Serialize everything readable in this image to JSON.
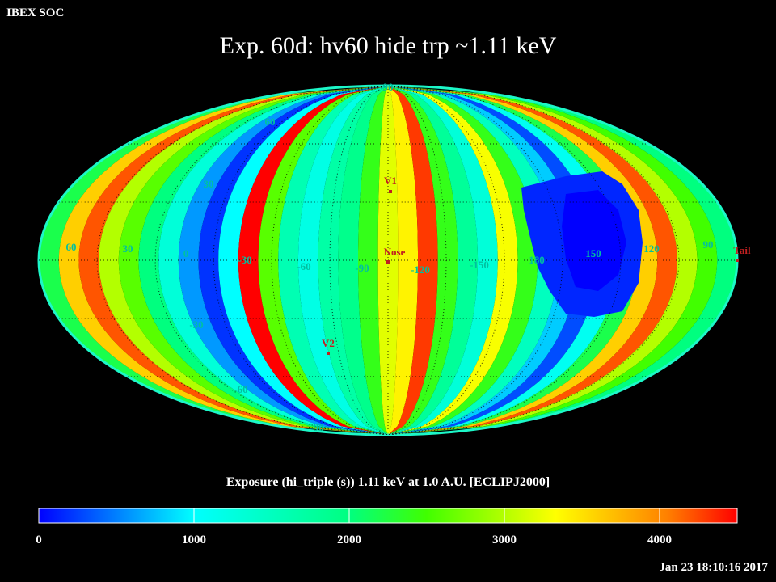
{
  "header": {
    "label": "IBEX SOC"
  },
  "title": "Exp.   60d: hv60 hide trp ~1.11 keV",
  "colorbar": {
    "title": "Exposure (hi_triple (s))  1.11 keV at 1.0 A.U. [ECLIPJ2000]",
    "min": 0,
    "max": 4500,
    "ticks": [
      "0",
      "1000",
      "2000",
      "3000",
      "4000"
    ],
    "tick_values": [
      0,
      1000,
      2000,
      3000,
      4000
    ]
  },
  "timestamp": "Jan 23 18:10:16 2017",
  "map": {
    "projection": "Aitoff/Hammer (all-sky ellipse)",
    "grid_style": "dotted",
    "longitude_labels": [
      "60",
      "30",
      "0",
      "-30",
      "-60",
      "-90",
      "-120",
      "-150",
      "180",
      "150",
      "120",
      "90"
    ],
    "latitude_labels": [
      "90",
      "60",
      "30",
      "-30",
      "-60",
      "-90"
    ],
    "markers": [
      {
        "label": "V1",
        "color": "#c02020"
      },
      {
        "label": "Nose",
        "color": "#c02020"
      },
      {
        "label": "V2",
        "color": "#c02020"
      },
      {
        "label": "Tail",
        "color": "#c02020"
      }
    ],
    "stripe_exposure_values": [
      2200,
      3600,
      4200,
      3000,
      2600,
      2000,
      1300,
      600,
      200,
      1000,
      4500,
      2600,
      1600,
      1200,
      1700,
      1900,
      2400,
      3200,
      3400,
      4300,
      2400,
      1800,
      1300,
      3300,
      2400,
      1500,
      800,
      300,
      1100,
      2200,
      3600,
      4200,
      3000,
      2500,
      2000
    ],
    "low_exposure_region_value": 150
  },
  "colors": {
    "background": "#000000",
    "text": "#ffffff",
    "grid_label": "#00c0a0",
    "marker": "#c02020"
  }
}
